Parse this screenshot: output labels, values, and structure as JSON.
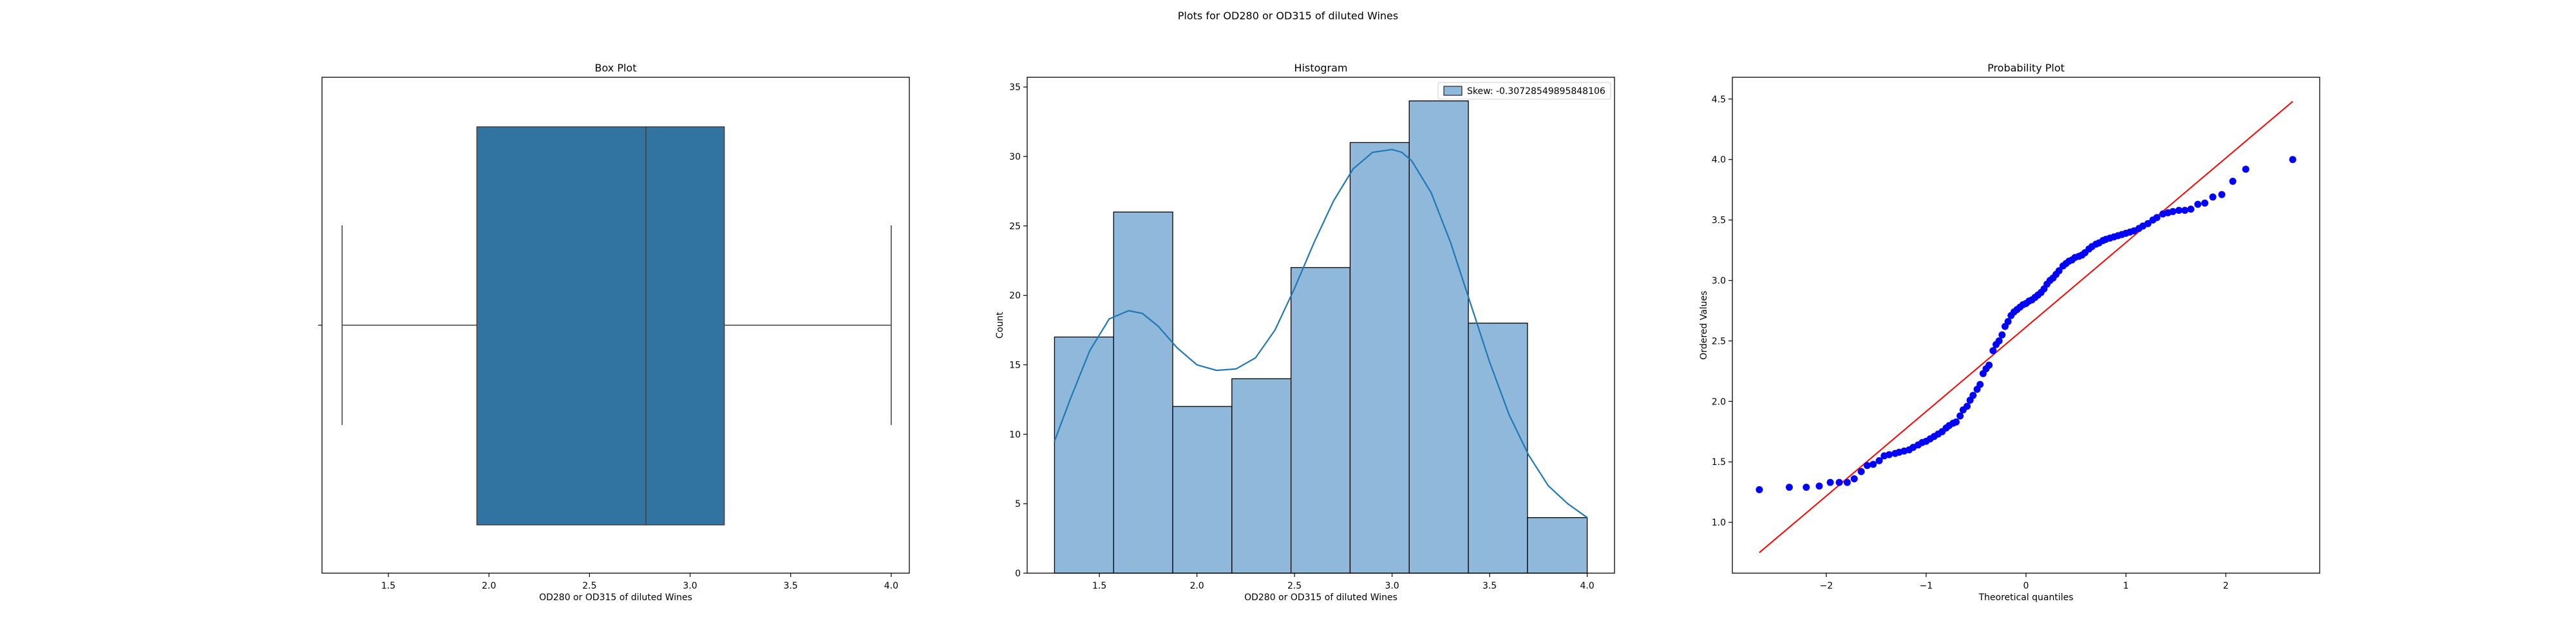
{
  "figure": {
    "suptitle": "Plots for OD280 or OD315 of diluted Wines"
  },
  "colors": {
    "box_fill": "#3274a1",
    "hist_fill": "#8fb8da",
    "kde_line": "#1f77b4",
    "points": "#0000ff",
    "fit_line": "#ff0000",
    "edge": "#000000"
  },
  "chart_data": [
    {
      "type": "box",
      "title": "Box Plot",
      "xlabel": "OD280 or OD315 of diluted Wines",
      "ylabel": "",
      "xlim": [
        1.17,
        4.09
      ],
      "xticks": [
        1.5,
        2.0,
        2.5,
        3.0,
        3.5,
        4.0
      ],
      "xtick_labels": [
        "1.5",
        "2.0",
        "2.5",
        "3.0",
        "3.5",
        "4.0"
      ],
      "whisker_low": 1.27,
      "q1": 1.94,
      "median": 2.78,
      "q3": 3.17,
      "whisker_high": 4.0
    },
    {
      "type": "histogram",
      "title": "Histogram",
      "xlabel": "OD280 or OD315 of diluted Wines",
      "ylabel": "Count",
      "xlim": [
        1.13,
        4.14
      ],
      "ylim": [
        0,
        35.7
      ],
      "xticks": [
        1.5,
        2.0,
        2.5,
        3.0,
        3.5,
        4.0
      ],
      "xtick_labels": [
        "1.5",
        "2.0",
        "2.5",
        "3.0",
        "3.5",
        "4.0"
      ],
      "yticks": [
        0,
        5,
        10,
        15,
        20,
        25,
        30,
        35
      ],
      "ytick_labels": [
        "0",
        "5",
        "10",
        "15",
        "20",
        "25",
        "30",
        "35"
      ],
      "bin_edges": [
        1.27,
        1.573,
        1.876,
        2.179,
        2.482,
        2.785,
        3.088,
        3.391,
        3.694,
        4.0
      ],
      "counts": [
        17,
        26,
        12,
        14,
        22,
        31,
        34,
        18,
        4
      ],
      "kde": {
        "x": [
          1.27,
          1.35,
          1.45,
          1.55,
          1.65,
          1.72,
          1.8,
          1.9,
          2.0,
          2.1,
          2.2,
          2.3,
          2.4,
          2.5,
          2.6,
          2.7,
          2.8,
          2.9,
          3.0,
          3.05,
          3.1,
          3.2,
          3.3,
          3.4,
          3.5,
          3.6,
          3.7,
          3.8,
          3.9,
          4.0
        ],
        "y": [
          9.5,
          12.5,
          16.0,
          18.3,
          18.9,
          18.7,
          17.8,
          16.2,
          15.0,
          14.6,
          14.7,
          15.5,
          17.5,
          20.5,
          23.8,
          26.8,
          29.1,
          30.3,
          30.5,
          30.3,
          29.7,
          27.4,
          23.8,
          19.5,
          15.2,
          11.4,
          8.5,
          6.3,
          5.0,
          4.0
        ]
      },
      "legend": {
        "label": "Skew: -0.30728549895848106",
        "placement": "upper right"
      }
    },
    {
      "type": "scatter",
      "title": "Probability Plot",
      "xlabel": "Theoretical quantiles",
      "ylabel": "Ordered Values",
      "xlim": [
        -2.94,
        2.94
      ],
      "ylim": [
        0.58,
        4.68
      ],
      "xticks": [
        -2,
        -1,
        0,
        1,
        2
      ],
      "xtick_labels": [
        "−2",
        "−1",
        "0",
        "1",
        "2"
      ],
      "yticks": [
        1.0,
        1.5,
        2.0,
        2.5,
        3.0,
        3.5,
        4.0,
        4.5
      ],
      "ytick_labels": [
        "1.0",
        "1.5",
        "2.0",
        "2.5",
        "3.0",
        "3.5",
        "4.0",
        "4.5"
      ],
      "fit_line": {
        "x": [
          -2.67,
          2.67
        ],
        "y": [
          0.75,
          4.48
        ]
      },
      "points": [
        [
          -2.67,
          1.27
        ],
        [
          -2.37,
          1.29
        ],
        [
          -2.2,
          1.29
        ],
        [
          -2.07,
          1.3
        ],
        [
          -1.96,
          1.33
        ],
        [
          -1.87,
          1.33
        ],
        [
          -1.79,
          1.33
        ],
        [
          -1.72,
          1.36
        ],
        [
          -1.65,
          1.42
        ],
        [
          -1.59,
          1.47
        ],
        [
          -1.53,
          1.48
        ],
        [
          -1.47,
          1.51
        ],
        [
          -1.42,
          1.55
        ],
        [
          -1.37,
          1.56
        ],
        [
          -1.31,
          1.57
        ],
        [
          -1.27,
          1.58
        ],
        [
          -1.22,
          1.59
        ],
        [
          -1.17,
          1.6
        ],
        [
          -1.13,
          1.62
        ],
        [
          -1.08,
          1.64
        ],
        [
          -1.04,
          1.66
        ],
        [
          -1.0,
          1.67
        ],
        [
          -0.96,
          1.69
        ],
        [
          -0.92,
          1.71
        ],
        [
          -0.88,
          1.73
        ],
        [
          -0.84,
          1.75
        ],
        [
          -0.8,
          1.78
        ],
        [
          -0.77,
          1.8
        ],
        [
          -0.73,
          1.82
        ],
        [
          -0.7,
          1.83
        ],
        [
          -0.66,
          1.88
        ],
        [
          -0.63,
          1.93
        ],
        [
          -0.59,
          1.96
        ],
        [
          -0.56,
          2.01
        ],
        [
          -0.53,
          2.05
        ],
        [
          -0.49,
          2.1
        ],
        [
          -0.46,
          2.14
        ],
        [
          -0.43,
          2.23
        ],
        [
          -0.4,
          2.27
        ],
        [
          -0.37,
          2.3
        ],
        [
          -0.33,
          2.42
        ],
        [
          -0.3,
          2.47
        ],
        [
          -0.27,
          2.5
        ],
        [
          -0.24,
          2.55
        ],
        [
          -0.21,
          2.62
        ],
        [
          -0.18,
          2.66
        ],
        [
          -0.15,
          2.71
        ],
        [
          -0.12,
          2.74
        ],
        [
          -0.09,
          2.76
        ],
        [
          -0.06,
          2.78
        ],
        [
          -0.03,
          2.8
        ],
        [
          0.0,
          2.81
        ],
        [
          0.03,
          2.83
        ],
        [
          0.06,
          2.84
        ],
        [
          0.09,
          2.86
        ],
        [
          0.12,
          2.88
        ],
        [
          0.15,
          2.9
        ],
        [
          0.18,
          2.93
        ],
        [
          0.21,
          2.97
        ],
        [
          0.24,
          3.0
        ],
        [
          0.27,
          3.02
        ],
        [
          0.3,
          3.05
        ],
        [
          0.33,
          3.08
        ],
        [
          0.37,
          3.12
        ],
        [
          0.4,
          3.14
        ],
        [
          0.43,
          3.16
        ],
        [
          0.46,
          3.17
        ],
        [
          0.49,
          3.19
        ],
        [
          0.53,
          3.2
        ],
        [
          0.56,
          3.21
        ],
        [
          0.59,
          3.23
        ],
        [
          0.63,
          3.26
        ],
        [
          0.66,
          3.28
        ],
        [
          0.7,
          3.3
        ],
        [
          0.73,
          3.31
        ],
        [
          0.77,
          3.33
        ],
        [
          0.8,
          3.34
        ],
        [
          0.84,
          3.35
        ],
        [
          0.88,
          3.36
        ],
        [
          0.92,
          3.37
        ],
        [
          0.96,
          3.38
        ],
        [
          1.0,
          3.39
        ],
        [
          1.04,
          3.4
        ],
        [
          1.08,
          3.41
        ],
        [
          1.13,
          3.43
        ],
        [
          1.17,
          3.45
        ],
        [
          1.22,
          3.47
        ],
        [
          1.27,
          3.5
        ],
        [
          1.31,
          3.52
        ],
        [
          1.37,
          3.55
        ],
        [
          1.42,
          3.56
        ],
        [
          1.47,
          3.57
        ],
        [
          1.53,
          3.58
        ],
        [
          1.59,
          3.58
        ],
        [
          1.65,
          3.59
        ],
        [
          1.72,
          3.63
        ],
        [
          1.79,
          3.64
        ],
        [
          1.87,
          3.69
        ],
        [
          1.96,
          3.71
        ],
        [
          2.07,
          3.82
        ],
        [
          2.2,
          3.92
        ],
        [
          2.67,
          4.0
        ]
      ]
    }
  ]
}
